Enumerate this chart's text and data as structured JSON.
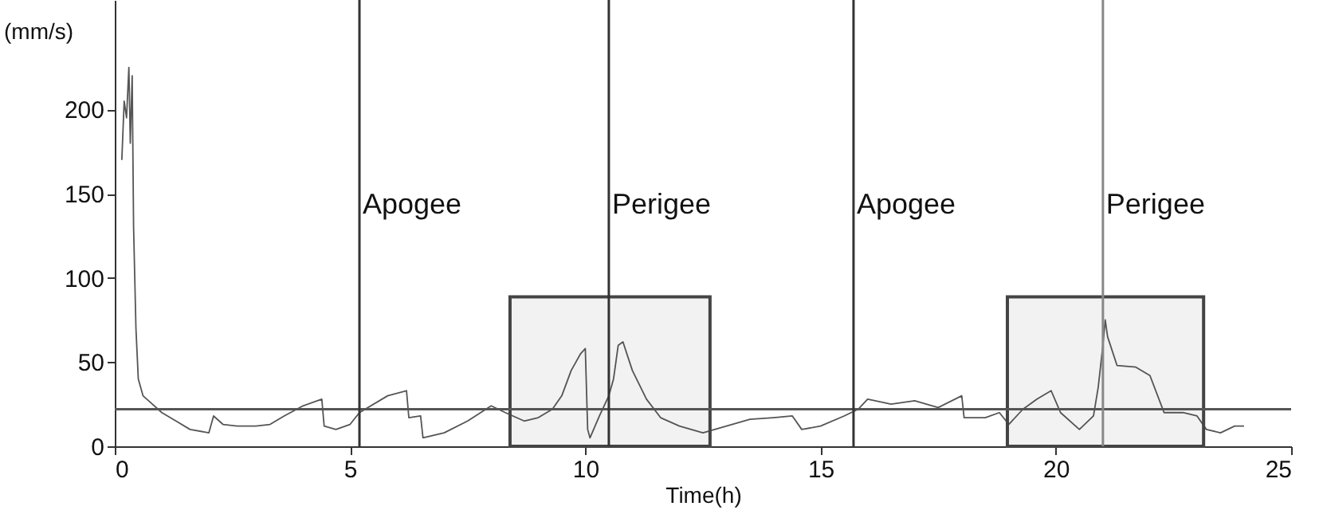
{
  "chart_data": {
    "type": "line",
    "xlabel": "Time(h)",
    "ylabel": "(mm/s)",
    "x": [
      0.15,
      0.2,
      0.25,
      0.3,
      0.33,
      0.37,
      0.4,
      0.45,
      0.5,
      0.6,
      0.8,
      1.0,
      1.3,
      1.6,
      2.0,
      2.1,
      2.3,
      2.6,
      3.0,
      3.3,
      3.6,
      4.0,
      4.4,
      4.45,
      4.7,
      5.0,
      5.2,
      5.8,
      6.2,
      6.25,
      6.5,
      6.55,
      7.0,
      7.5,
      8.0,
      8.3,
      8.7,
      9.0,
      9.3,
      9.5,
      9.7,
      9.8,
      9.9,
      10.0,
      10.05,
      10.1,
      10.3,
      10.5,
      10.6,
      10.7,
      10.8,
      11.0,
      11.3,
      11.6,
      12.0,
      12.5,
      13.0,
      13.5,
      14.0,
      14.4,
      14.6,
      15.0,
      15.5,
      15.8,
      16.0,
      16.5,
      17.0,
      17.5,
      18.0,
      18.05,
      18.5,
      18.8,
      19.0,
      19.3,
      19.6,
      19.9,
      20.1,
      20.5,
      20.8,
      20.9,
      21.0,
      21.05,
      21.1,
      21.3,
      21.7,
      22.0,
      22.3,
      22.7,
      23.0,
      23.2,
      23.5,
      23.8,
      24.0
    ],
    "series": [
      {
        "color": "#555555",
        "values": [
          170,
          205,
          195,
          225,
          180,
          220,
          130,
          70,
          40,
          30,
          25,
          20,
          15,
          10,
          8,
          18,
          13,
          12,
          12,
          13,
          18,
          24,
          28,
          12,
          10,
          13,
          20,
          30,
          33,
          17,
          18,
          5,
          8,
          15,
          24,
          20,
          15,
          17,
          22,
          30,
          45,
          50,
          55,
          58,
          10,
          5,
          18,
          30,
          40,
          60,
          62,
          45,
          28,
          17,
          12,
          8,
          12,
          16,
          17,
          18,
          10,
          12,
          18,
          22,
          28,
          25,
          27,
          23,
          30,
          17,
          17,
          20,
          13,
          22,
          28,
          33,
          20,
          10,
          18,
          35,
          60,
          75,
          65,
          48,
          47,
          42,
          20,
          20,
          18,
          10,
          8,
          12,
          12
        ]
      }
    ],
    "xlim": [
      0,
      25
    ],
    "xticks": [
      0,
      5,
      10,
      15,
      20,
      25
    ],
    "ylim": [
      0,
      265
    ],
    "yticks": [
      0,
      50,
      100,
      150,
      200
    ],
    "ref_lines": [
      {
        "axis": "y",
        "value": 22,
        "color": "#555555"
      },
      {
        "axis": "x",
        "value": 5.2,
        "label": "Apogee",
        "color": "#333333"
      },
      {
        "axis": "x",
        "value": 10.5,
        "label": "Perigee",
        "color": "#333333"
      },
      {
        "axis": "x",
        "value": 15.7,
        "label": "Apogee",
        "color": "#333333"
      },
      {
        "axis": "x",
        "value": 21,
        "label": "Perigee",
        "color": "#888888"
      }
    ],
    "bands": [
      {
        "axis": "x",
        "from": 8.4,
        "to": 12.65,
        "color": "#444444"
      },
      {
        "axis": "x",
        "from": 18.97,
        "to": 23.14,
        "color": "#444444"
      }
    ]
  }
}
